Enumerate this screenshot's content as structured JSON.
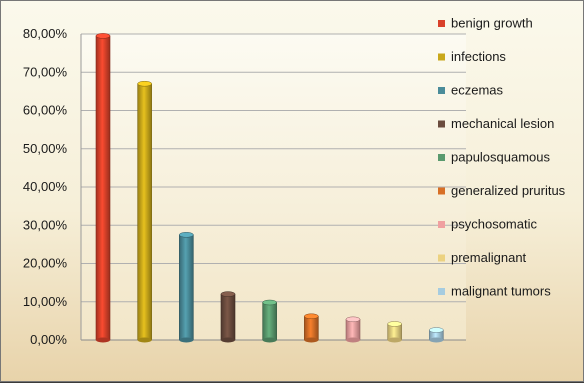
{
  "chart_data": {
    "type": "bar",
    "categories": [
      "benign  growth",
      "infections",
      "eczemas",
      "mechanical lesion",
      "papulosquamous",
      "generalized pruritus",
      "psychosomatic",
      "premalignant",
      "malignant tumors"
    ],
    "values": [
      79.5,
      67.0,
      27.5,
      12.0,
      9.8,
      6.2,
      5.4,
      4.2,
      2.6
    ],
    "colors": [
      "#d9412a",
      "#c9a81a",
      "#4a8c9a",
      "#6b4c3e",
      "#5a9a6e",
      "#d86f26",
      "#f0a0a0",
      "#ecd280",
      "#a6cce0"
    ],
    "title": "",
    "xlabel": "",
    "ylabel": "",
    "ylim": [
      0,
      80
    ],
    "yticks": [
      "0,00%",
      "10,00%",
      "20,00%",
      "30,00%",
      "40,00%",
      "50,00%",
      "60,00%",
      "70,00%",
      "80,00%"
    ],
    "grid": true,
    "legend_position": "right"
  }
}
